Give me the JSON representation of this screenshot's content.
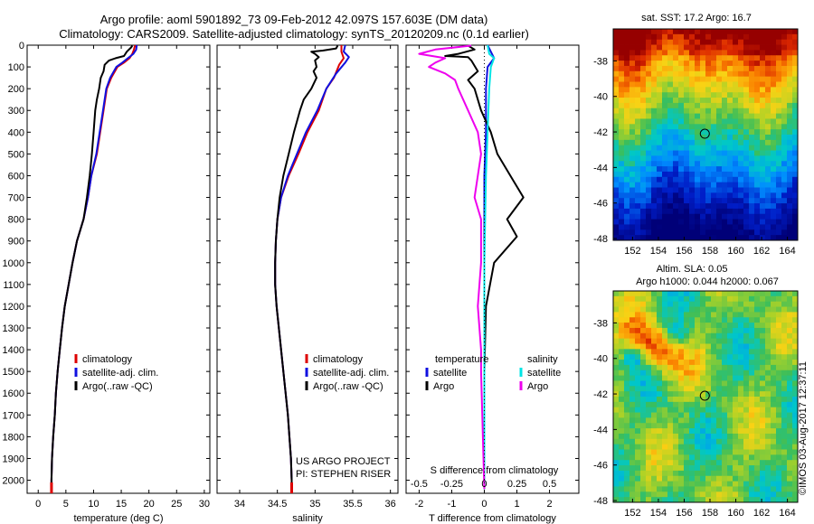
{
  "title_line1": "Argo profile: aoml 5901892_73 09-Feb-2012 42.097S 157.603E (DM data)",
  "title_line2": "Climatology: CARS2009. Satellite-adjusted climatology: synTS_20120209.nc (0.1d earlier)",
  "credit": "©IMOS 03-Aug-2017 12:37:11",
  "colors": {
    "climatology": "#dd0000",
    "satellite": "#1010e0",
    "argo": "#000000",
    "salinity_sat": "#00e5e5",
    "salinity_argo": "#ee00ee"
  },
  "chart_data": [
    {
      "type": "line",
      "name": "temperature",
      "xlabel": "temperature (deg C)",
      "xlim": [
        -2,
        31
      ],
      "xticks": [
        0,
        5,
        10,
        15,
        20,
        25,
        30
      ],
      "ylim": [
        0,
        2060
      ],
      "yticks": [
        0,
        100,
        200,
        300,
        400,
        500,
        600,
        700,
        800,
        900,
        1000,
        1100,
        1200,
        1300,
        1400,
        1500,
        1600,
        1700,
        1800,
        1900,
        2000
      ],
      "legend": [
        "climatology",
        "satellite-adj. clim.",
        "Argo(..raw -QC)"
      ],
      "series": [
        {
          "name": "climatology",
          "points": [
            [
              17.5,
              0
            ],
            [
              17.3,
              20
            ],
            [
              17.0,
              40
            ],
            [
              16.5,
              60
            ],
            [
              15.5,
              80
            ],
            [
              14.3,
              100
            ],
            [
              13.2,
              150
            ],
            [
              12.4,
              200
            ],
            [
              11.8,
              300
            ],
            [
              11.2,
              400
            ],
            [
              10.6,
              500
            ],
            [
              9.6,
              600
            ],
            [
              9.0,
              700
            ],
            [
              8.2,
              800
            ],
            [
              7.0,
              900
            ],
            [
              6.2,
              1000
            ],
            [
              5.5,
              1100
            ],
            [
              4.8,
              1200
            ],
            [
              4.3,
              1300
            ],
            [
              3.9,
              1400
            ],
            [
              3.5,
              1500
            ],
            [
              3.2,
              1600
            ],
            [
              3.0,
              1700
            ],
            [
              2.7,
              1800
            ],
            [
              2.5,
              1900
            ],
            [
              2.4,
              2000
            ],
            [
              2.4,
              2050
            ]
          ]
        },
        {
          "name": "satellite-adj. clim.",
          "points": [
            [
              17.8,
              0
            ],
            [
              17.7,
              20
            ],
            [
              17.2,
              40
            ],
            [
              16.2,
              60
            ],
            [
              15.2,
              80
            ],
            [
              14.1,
              100
            ],
            [
              13.0,
              150
            ],
            [
              12.3,
              200
            ],
            [
              11.7,
              300
            ],
            [
              11.1,
              400
            ],
            [
              10.5,
              500
            ],
            [
              9.6,
              600
            ],
            [
              9.0,
              700
            ],
            [
              8.2,
              800
            ],
            [
              7.0,
              900
            ],
            [
              6.2,
              1000
            ],
            [
              5.5,
              1100
            ],
            [
              4.8,
              1200
            ],
            [
              4.3,
              1300
            ],
            [
              3.9,
              1400
            ],
            [
              3.5,
              1500
            ],
            [
              3.2,
              1600
            ],
            [
              3.0,
              1700
            ],
            [
              2.7,
              1800
            ],
            [
              2.5,
              1900
            ],
            [
              2.4,
              2000
            ],
            [
              2.4,
              2050
            ]
          ]
        },
        {
          "name": "Argo(..raw -QC)",
          "points": [
            [
              17.0,
              2
            ],
            [
              16.8,
              10
            ],
            [
              16.0,
              30
            ],
            [
              15.5,
              50
            ],
            [
              14.0,
              60
            ],
            [
              12.8,
              70
            ],
            [
              12.0,
              90
            ],
            [
              11.8,
              120
            ],
            [
              11.3,
              150
            ],
            [
              11.0,
              200
            ],
            [
              10.6,
              250
            ],
            [
              10.3,
              300
            ],
            [
              10.0,
              400
            ],
            [
              9.7,
              500
            ],
            [
              9.3,
              600
            ],
            [
              8.8,
              700
            ],
            [
              8.2,
              800
            ],
            [
              7.0,
              900
            ],
            [
              6.2,
              1000
            ],
            [
              5.5,
              1100
            ],
            [
              4.8,
              1200
            ],
            [
              4.3,
              1300
            ],
            [
              3.9,
              1400
            ],
            [
              3.5,
              1500
            ],
            [
              3.2,
              1600
            ],
            [
              3.0,
              1700
            ],
            [
              2.7,
              1800
            ],
            [
              2.5,
              1900
            ],
            [
              2.4,
              2000
            ],
            [
              2.4,
              2040
            ]
          ]
        }
      ]
    },
    {
      "type": "line",
      "name": "salinity",
      "xlabel": "salinity",
      "xlim": [
        33.7,
        36.1
      ],
      "xticks": [
        34,
        34.5,
        35,
        35.5,
        36
      ],
      "ylim": [
        0,
        2060
      ],
      "legend": [
        "climatology",
        "satellite-adj. clim.",
        "Argo(..raw -QC)"
      ],
      "annotations": [
        "US ARGO PROJECT",
        "PI: STEPHEN RISER"
      ],
      "series": [
        {
          "name": "climatology",
          "points": [
            [
              35.35,
              0
            ],
            [
              35.35,
              30
            ],
            [
              35.38,
              60
            ],
            [
              35.32,
              90
            ],
            [
              35.25,
              150
            ],
            [
              35.15,
              200
            ],
            [
              35.05,
              300
            ],
            [
              34.9,
              400
            ],
            [
              34.78,
              500
            ],
            [
              34.65,
              600
            ],
            [
              34.55,
              700
            ],
            [
              34.5,
              800
            ],
            [
              34.48,
              900
            ],
            [
              34.47,
              1000
            ],
            [
              34.47,
              1100
            ],
            [
              34.49,
              1200
            ],
            [
              34.52,
              1300
            ],
            [
              34.55,
              1400
            ],
            [
              34.58,
              1500
            ],
            [
              34.61,
              1600
            ],
            [
              34.64,
              1700
            ],
            [
              34.66,
              1800
            ],
            [
              34.68,
              1900
            ],
            [
              34.69,
              2000
            ],
            [
              34.69,
              2050
            ]
          ]
        },
        {
          "name": "satellite-adj. clim.",
          "points": [
            [
              35.4,
              0
            ],
            [
              35.38,
              30
            ],
            [
              35.45,
              55
            ],
            [
              35.4,
              80
            ],
            [
              35.28,
              130
            ],
            [
              35.15,
              200
            ],
            [
              35.03,
              300
            ],
            [
              34.88,
              400
            ],
            [
              34.76,
              500
            ],
            [
              34.64,
              600
            ],
            [
              34.55,
              700
            ],
            [
              34.5,
              800
            ],
            [
              34.48,
              900
            ],
            [
              34.47,
              1000
            ],
            [
              34.47,
              1100
            ],
            [
              34.49,
              1200
            ],
            [
              34.52,
              1300
            ],
            [
              34.55,
              1400
            ],
            [
              34.58,
              1500
            ],
            [
              34.61,
              1600
            ],
            [
              34.64,
              1700
            ],
            [
              34.66,
              1800
            ],
            [
              34.68,
              1900
            ],
            [
              34.69,
              2000
            ],
            [
              34.69,
              2050
            ]
          ]
        },
        {
          "name": "Argo(..raw -QC)",
          "points": [
            [
              35.3,
              2
            ],
            [
              35.28,
              15
            ],
            [
              35.1,
              25
            ],
            [
              34.95,
              30
            ],
            [
              35.0,
              40
            ],
            [
              35.05,
              55
            ],
            [
              35.0,
              70
            ],
            [
              35.02,
              100
            ],
            [
              34.98,
              120
            ],
            [
              35.02,
              150
            ],
            [
              34.95,
              200
            ],
            [
              34.85,
              250
            ],
            [
              34.8,
              300
            ],
            [
              34.72,
              400
            ],
            [
              34.65,
              500
            ],
            [
              34.58,
              600
            ],
            [
              34.53,
              700
            ],
            [
              34.5,
              800
            ],
            [
              34.48,
              900
            ],
            [
              34.47,
              1000
            ],
            [
              34.47,
              1100
            ],
            [
              34.49,
              1200
            ],
            [
              34.52,
              1300
            ],
            [
              34.55,
              1400
            ],
            [
              34.58,
              1500
            ],
            [
              34.61,
              1600
            ],
            [
              34.64,
              1700
            ],
            [
              34.66,
              1800
            ],
            [
              34.68,
              1900
            ],
            [
              34.69,
              2000
            ],
            [
              34.69,
              2040
            ]
          ]
        }
      ]
    },
    {
      "type": "line",
      "name": "difference",
      "xlabel": "T difference from climatology",
      "xlabel_top": "S difference from climatology",
      "xlim": [
        -2.4,
        2.9
      ],
      "xticks": [
        -2,
        -1,
        0,
        1,
        2
      ],
      "s_ticks": [
        "-0.5",
        "-0.25",
        "0",
        "0.25",
        "0.5"
      ],
      "ylim": [
        0,
        2060
      ],
      "legend_headers": [
        "temperature",
        "salinity"
      ],
      "legend": [
        "satellite",
        "Argo",
        "satellite",
        "Argo"
      ],
      "series": [
        {
          "name": "temperature satellite",
          "points": [
            [
              0.1,
              0
            ],
            [
              0.2,
              30
            ],
            [
              0.3,
              60
            ],
            [
              0.1,
              100
            ],
            [
              0.05,
              200
            ],
            [
              0.05,
              400
            ],
            [
              0,
              600
            ],
            [
              0,
              1000
            ],
            [
              0,
              2040
            ]
          ]
        },
        {
          "name": "temperature Argo",
          "points": [
            [
              -0.5,
              2
            ],
            [
              -0.3,
              20
            ],
            [
              -0.8,
              40
            ],
            [
              -1.2,
              50
            ],
            [
              -0.5,
              55
            ],
            [
              -0.4,
              70
            ],
            [
              -0.2,
              120
            ],
            [
              -0.5,
              160
            ],
            [
              -0.3,
              200
            ],
            [
              -0.1,
              300
            ],
            [
              0.2,
              400
            ],
            [
              0.4,
              500
            ],
            [
              0.8,
              600
            ],
            [
              1.2,
              700
            ],
            [
              0.7,
              800
            ],
            [
              1.0,
              880
            ],
            [
              0.3,
              1000
            ],
            [
              0.05,
              1200
            ],
            [
              0,
              1500
            ],
            [
              0,
              2040
            ]
          ]
        },
        {
          "name": "salinity satellite",
          "points": [
            [
              0.1,
              0
            ],
            [
              0.15,
              40
            ],
            [
              0.3,
              60
            ],
            [
              0.2,
              100
            ],
            [
              0.15,
              200
            ],
            [
              0.1,
              400
            ],
            [
              0.05,
              600
            ],
            [
              0,
              1000
            ],
            [
              0,
              2040
            ]
          ]
        },
        {
          "name": "salinity Argo",
          "points": [
            [
              -0.4,
              2
            ],
            [
              -1.5,
              20
            ],
            [
              -2.0,
              40
            ],
            [
              -1.2,
              60
            ],
            [
              -1.5,
              80
            ],
            [
              -1.7,
              100
            ],
            [
              -1.2,
              130
            ],
            [
              -0.9,
              160
            ],
            [
              -0.8,
              200
            ],
            [
              -0.5,
              300
            ],
            [
              -0.2,
              400
            ],
            [
              -0.1,
              500
            ],
            [
              -0.2,
              600
            ],
            [
              -0.3,
              700
            ],
            [
              -0.1,
              800
            ],
            [
              -0.1,
              1000
            ],
            [
              -0.2,
              1200
            ],
            [
              -0.1,
              1400
            ],
            [
              -0.1,
              1500
            ],
            [
              0,
              2040
            ]
          ]
        }
      ]
    },
    {
      "type": "heatmap",
      "name": "sst_map",
      "title": "sat. SST: 17.2  Argo: 16.7",
      "xticks": [
        "152",
        "154",
        "156",
        "158",
        "160",
        "162",
        "164"
      ],
      "yticks": [
        "-38",
        "-40",
        "-42",
        "-44",
        "-46",
        "-48"
      ],
      "xlim": [
        150.5,
        164.8
      ],
      "ylim": [
        -48.1,
        -36.2
      ],
      "marker": [
        157.6,
        -42.1
      ]
    },
    {
      "type": "heatmap",
      "name": "sla_map",
      "title_lines": [
        "Altim. SLA: 0.05",
        "Argo h1000: 0.044 h2000: 0.067"
      ],
      "xticks": [
        "152",
        "154",
        "156",
        "158",
        "160",
        "162",
        "164"
      ],
      "yticks": [
        "-38",
        "-40",
        "-42",
        "-44",
        "-46",
        "-48"
      ],
      "xlim": [
        150.5,
        164.8
      ],
      "ylim": [
        -48.1,
        -36.2
      ],
      "marker": [
        157.6,
        -42.1
      ]
    }
  ]
}
